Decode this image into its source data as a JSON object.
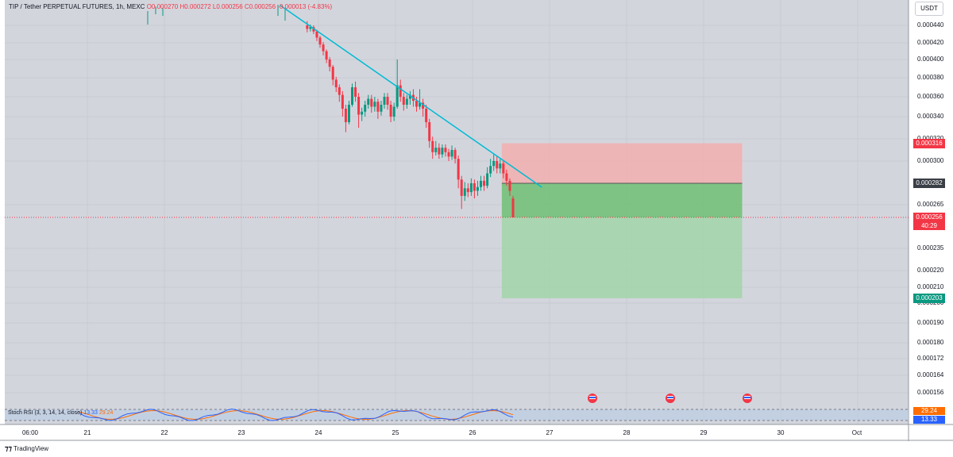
{
  "header": {
    "symbol": "TIP / Tether PERPETUAL FUTURES, 1h, MEXC",
    "ohlc": "O0.000270 H0.000272 L0.000256 C0.000256 -0.000013 (-4.83%)"
  },
  "currency_button": "USDT",
  "price_axis_ticks": [
    "0.000440",
    "0.000420",
    "0.000400",
    "0.000380",
    "0.000360",
    "0.000340",
    "0.000320",
    "0.000300",
    "0.000265",
    "0.000235",
    "0.000220",
    "0.000210",
    "0.000200",
    "0.000190",
    "0.000180",
    "0.000172",
    "0.000164",
    "0.000156"
  ],
  "price_tags": {
    "stop": {
      "value": "0.000316",
      "color": "#f23645"
    },
    "entry": {
      "value": "0.000282",
      "color": "#3a3e46"
    },
    "last": {
      "value": "0.000256",
      "countdown": "40:29",
      "color": "#f23645"
    },
    "target": {
      "value": "0.000203",
      "color": "#089981"
    }
  },
  "time_axis_ticks": [
    "06:00",
    "21",
    "22",
    "23",
    "24",
    "25",
    "26",
    "27",
    "28",
    "29",
    "30",
    "Oct"
  ],
  "indicator": {
    "label": "Stoch RSI (3, 3, 14, 14, close)",
    "k_value": "13.33",
    "d_value": "29.24",
    "k_color": "#2962ff",
    "d_color": "#ff6d00"
  },
  "footer_brand": "TradingView",
  "chart_data": {
    "type": "candlestick",
    "title": "",
    "y_axis_ticks": [
      0.00044,
      0.00042,
      0.0004,
      0.00038,
      0.00036,
      0.00034,
      0.00032,
      0.0003,
      0.000265,
      0.000235,
      0.00022,
      0.00021,
      0.0002,
      0.00019,
      0.00018,
      0.000172,
      0.000164,
      0.000156
    ],
    "last_price": 0.000256,
    "trendline": {
      "from": [
        23.5,
        0.000445
      ],
      "to": [
        26.9,
        0.000282
      ],
      "color": "#00bcd4"
    },
    "short_position": {
      "entry": 0.000282,
      "stop": 0.000316,
      "target": 0.000203,
      "start": 26.38,
      "end": 29.5
    },
    "candles": [
      [
        0.00044,
        0.000436,
        0.000445,
        0.000432
      ],
      [
        0.000436,
        0.000438,
        0.000441,
        0.000433
      ],
      [
        0.000438,
        0.000433,
        0.00044,
        0.00043
      ],
      [
        0.000433,
        0.000426,
        0.000435,
        0.000422
      ],
      [
        0.000426,
        0.000418,
        0.000428,
        0.000414
      ],
      [
        0.000418,
        0.00041,
        0.000421,
        0.000405
      ],
      [
        0.00041,
        0.0004,
        0.000412,
        0.000396
      ],
      [
        0.0004,
        0.000392,
        0.000403,
        0.000387
      ],
      [
        0.000392,
        0.000378,
        0.000394,
        0.000372
      ],
      [
        0.000378,
        0.00037,
        0.000381,
        0.000365
      ],
      [
        0.00037,
        0.000362,
        0.000373,
        0.000355
      ],
      [
        0.000362,
        0.000348,
        0.000366,
        0.00034
      ],
      [
        0.000348,
        0.000335,
        0.000352,
        0.000326
      ],
      [
        0.000335,
        0.000352,
        0.000356,
        0.000333
      ],
      [
        0.000352,
        0.00037,
        0.000374,
        0.00035
      ],
      [
        0.00037,
        0.00036,
        0.000376,
        0.000355
      ],
      [
        0.00036,
        0.000342,
        0.000364,
        0.00033
      ],
      [
        0.000342,
        0.000345,
        0.000349,
        0.000336
      ],
      [
        0.000345,
        0.000352,
        0.000356,
        0.00034
      ],
      [
        0.000352,
        0.000358,
        0.000362,
        0.000348
      ],
      [
        0.000358,
        0.00035,
        0.000362,
        0.000344
      ],
      [
        0.00035,
        0.000355,
        0.00036,
        0.000345
      ],
      [
        0.000355,
        0.000345,
        0.000358,
        0.000338
      ],
      [
        0.000345,
        0.000352,
        0.000356,
        0.000341
      ],
      [
        0.000352,
        0.00036,
        0.000364,
        0.000348
      ],
      [
        0.00036,
        0.000352,
        0.000364,
        0.000347
      ],
      [
        0.000352,
        0.00034,
        0.000356,
        0.000335
      ],
      [
        0.00034,
        0.00035,
        0.000354,
        0.000336
      ],
      [
        0.00035,
        0.000372,
        0.0004,
        0.000348
      ],
      [
        0.000372,
        0.00036,
        0.000378,
        0.000355
      ],
      [
        0.00036,
        0.000352,
        0.000364,
        0.000346
      ],
      [
        0.000352,
        0.000358,
        0.000362,
        0.000348
      ],
      [
        0.000358,
        0.000362,
        0.000366,
        0.000352
      ],
      [
        0.000362,
        0.000356,
        0.000368,
        0.00035
      ],
      [
        0.000356,
        0.00035,
        0.00036,
        0.000345
      ],
      [
        0.00035,
        0.000354,
        0.000368,
        0.000347
      ],
      [
        0.000354,
        0.000348,
        0.000358,
        0.00034
      ],
      [
        0.000348,
        0.000335,
        0.000352,
        0.00033
      ],
      [
        0.000335,
        0.000318,
        0.000338,
        0.000312
      ],
      [
        0.000318,
        0.000308,
        0.000322,
        0.000302
      ],
      [
        0.000308,
        0.000312,
        0.000318,
        0.000305
      ],
      [
        0.000312,
        0.000306,
        0.000316,
        0.000302
      ],
      [
        0.000306,
        0.000312,
        0.000315,
        0.000303
      ],
      [
        0.000312,
        0.000308,
        0.000315,
        0.000304
      ],
      [
        0.000308,
        0.000304,
        0.000311,
        0.0003
      ],
      [
        0.000304,
        0.00031,
        0.000314,
        0.000301
      ],
      [
        0.00031,
        0.000302,
        0.000312,
        0.000298
      ],
      [
        0.000302,
        0.000285,
        0.000305,
        0.000278
      ],
      [
        0.000285,
        0.000272,
        0.000288,
        0.000262
      ],
      [
        0.000272,
        0.000278,
        0.000283,
        0.000268
      ],
      [
        0.000278,
        0.000275,
        0.000282,
        0.000271
      ],
      [
        0.000275,
        0.000282,
        0.000286,
        0.000272
      ],
      [
        0.000282,
        0.000276,
        0.000285,
        0.00027
      ],
      [
        0.000276,
        0.000279,
        0.000284,
        0.000272
      ],
      [
        0.000279,
        0.000284,
        0.000288,
        0.000276
      ],
      [
        0.000284,
        0.00028,
        0.000288,
        0.000276
      ],
      [
        0.00028,
        0.00029,
        0.000295,
        0.000278
      ],
      [
        0.00029,
        0.000296,
        0.000302,
        0.000287
      ],
      [
        0.000296,
        0.0003,
        0.000306,
        0.000292
      ],
      [
        0.0003,
        0.000294,
        0.000305,
        0.00029
      ],
      [
        0.000294,
        0.000298,
        0.000302,
        0.00029
      ],
      [
        0.000298,
        0.00029,
        0.0003,
        0.000286
      ],
      [
        0.00029,
        0.000284,
        0.000293,
        0.00028
      ],
      [
        0.000284,
        0.000276,
        0.000286,
        0.000272
      ],
      [
        0.00027,
        0.000256,
        0.000272,
        0.000256
      ]
    ]
  }
}
